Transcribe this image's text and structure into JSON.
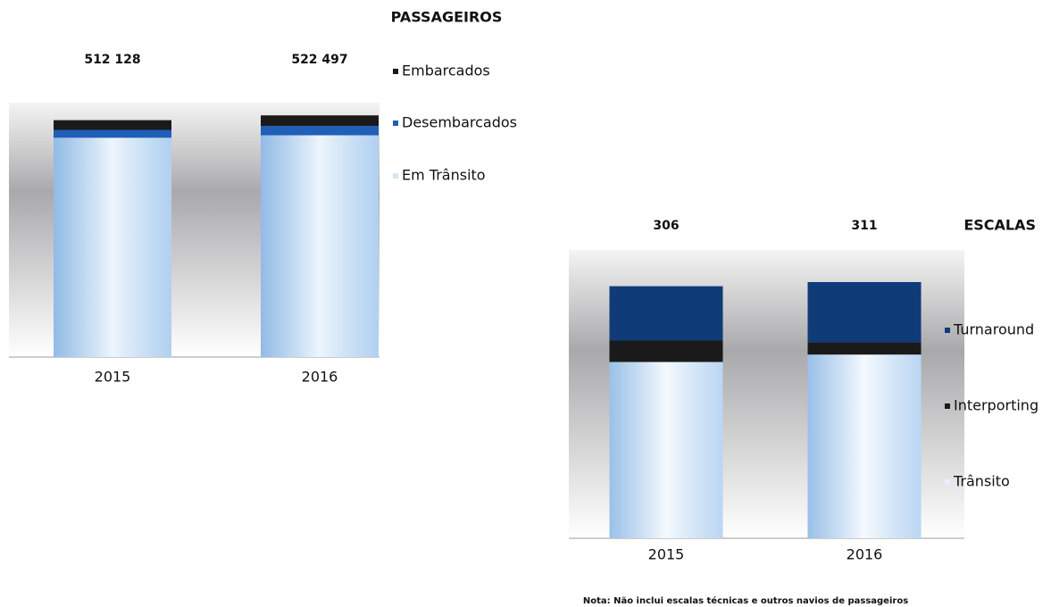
{
  "chart_data": [
    {
      "type": "stacked_bar",
      "title": "PASSAGEIROS",
      "categories": [
        "2015",
        "2016"
      ],
      "series": [
        {
          "name": "Em Trânsito",
          "color": "#d3e6f8",
          "values": [
            474128,
            479497
          ]
        },
        {
          "name": "Desembarcados",
          "color": "#1f5fb8",
          "values": [
            17000,
            20000
          ]
        },
        {
          "name": "Embarcados",
          "color": "#1a1a1a",
          "values": [
            21000,
            23000
          ]
        }
      ],
      "totals": {
        "values": [
          512128,
          522497
        ],
        "value_labels": [
          "512 128",
          "522 497"
        ]
      },
      "ylim": [
        0,
        550000
      ]
    },
    {
      "type": "stacked_bar",
      "title": "ESCALAS",
      "categories": [
        "2015",
        "2016"
      ],
      "series": [
        {
          "name": "Trânsito",
          "color": "#e6f1fc",
          "values": [
            214,
            223
          ]
        },
        {
          "name": "Interporting",
          "color": "#1a1a1a",
          "values": [
            26,
            15
          ]
        },
        {
          "name": "Turnaround",
          "color": "#0f3b78",
          "values": [
            66,
            73
          ]
        }
      ],
      "totals": {
        "values": [
          306,
          311
        ]
      },
      "ylim": [
        0,
        350
      ]
    }
  ],
  "note": "Nota: Não inclui escalas técnicas e outros navios de passageiros"
}
